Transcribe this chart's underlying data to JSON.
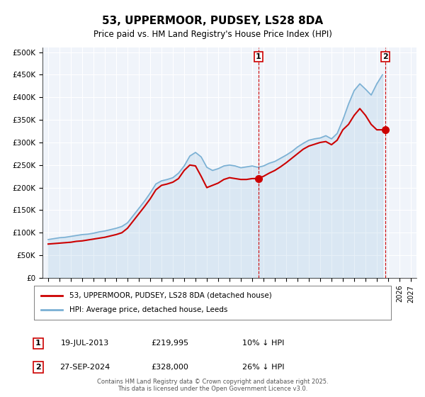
{
  "title": "53, UPPERMOOR, PUDSEY, LS28 8DA",
  "subtitle": "Price paid vs. HM Land Registry's House Price Index (HPI)",
  "title_fontsize": 11,
  "subtitle_fontsize": 9,
  "background_color": "#ffffff",
  "plot_bg_color": "#f0f4fa",
  "grid_color": "#ffffff",
  "legend_label_red": "53, UPPERMOOR, PUDSEY, LS28 8DA (detached house)",
  "legend_label_blue": "HPI: Average price, detached house, Leeds",
  "red_color": "#cc0000",
  "blue_color": "#7ab0d4",
  "annotation1_date": "19-JUL-2013",
  "annotation1_price": "£219,995",
  "annotation1_hpi": "10% ↓ HPI",
  "annotation1_year": 2013.54,
  "annotation1_value": 219995,
  "annotation2_date": "27-SEP-2024",
  "annotation2_price": "£328,000",
  "annotation2_hpi": "26% ↓ HPI",
  "annotation2_year": 2024.74,
  "annotation2_value": 328000,
  "xlabel": "",
  "ylabel": "",
  "ylim": [
    0,
    510000
  ],
  "xlim": [
    1994.5,
    2027.5
  ],
  "yticks": [
    0,
    50000,
    100000,
    150000,
    200000,
    250000,
    300000,
    350000,
    400000,
    450000,
    500000
  ],
  "ytick_labels": [
    "£0",
    "£50K",
    "£100K",
    "£150K",
    "£200K",
    "£250K",
    "£300K",
    "£350K",
    "£400K",
    "£450K",
    "£500K"
  ],
  "footer_text": "Contains HM Land Registry data © Crown copyright and database right 2025.\nThis data is licensed under the Open Government Licence v3.0.",
  "hpi_data": {
    "years": [
      1995.0,
      1995.5,
      1996.0,
      1996.5,
      1997.0,
      1997.5,
      1998.0,
      1998.5,
      1999.0,
      1999.5,
      2000.0,
      2000.5,
      2001.0,
      2001.5,
      2002.0,
      2002.5,
      2003.0,
      2003.5,
      2004.0,
      2004.5,
      2005.0,
      2005.5,
      2006.0,
      2006.5,
      2007.0,
      2007.5,
      2008.0,
      2008.5,
      2009.0,
      2009.5,
      2010.0,
      2010.5,
      2011.0,
      2011.5,
      2012.0,
      2012.5,
      2013.0,
      2013.5,
      2014.0,
      2014.5,
      2015.0,
      2015.5,
      2016.0,
      2016.5,
      2017.0,
      2017.5,
      2018.0,
      2018.5,
      2019.0,
      2019.5,
      2020.0,
      2020.5,
      2021.0,
      2021.5,
      2022.0,
      2022.5,
      2023.0,
      2023.5,
      2024.0,
      2024.5
    ],
    "values": [
      85000,
      87000,
      89000,
      90000,
      92000,
      94000,
      96000,
      97000,
      99000,
      102000,
      104000,
      107000,
      110000,
      114000,
      122000,
      138000,
      154000,
      170000,
      188000,
      208000,
      215000,
      218000,
      222000,
      232000,
      248000,
      270000,
      278000,
      268000,
      245000,
      238000,
      242000,
      248000,
      250000,
      248000,
      244000,
      246000,
      248000,
      245000,
      248000,
      254000,
      258000,
      265000,
      272000,
      280000,
      290000,
      298000,
      305000,
      308000,
      310000,
      315000,
      308000,
      320000,
      350000,
      385000,
      415000,
      430000,
      418000,
      405000,
      430000,
      450000
    ]
  },
  "red_data": {
    "years": [
      1995.0,
      1995.5,
      1996.0,
      1996.5,
      1997.0,
      1997.5,
      1998.0,
      1998.5,
      1999.0,
      1999.5,
      2000.0,
      2000.5,
      2001.0,
      2001.5,
      2002.0,
      2002.5,
      2003.0,
      2003.5,
      2004.0,
      2004.5,
      2005.0,
      2005.5,
      2006.0,
      2006.5,
      2007.0,
      2007.5,
      2008.0,
      2008.5,
      2009.0,
      2009.5,
      2010.0,
      2010.5,
      2011.0,
      2011.5,
      2012.0,
      2012.5,
      2013.0,
      2013.5,
      2014.0,
      2014.5,
      2015.0,
      2015.5,
      2016.0,
      2016.5,
      2017.0,
      2017.5,
      2018.0,
      2018.5,
      2019.0,
      2019.5,
      2020.0,
      2020.5,
      2021.0,
      2021.5,
      2022.0,
      2022.5,
      2023.0,
      2023.5,
      2024.0,
      2024.5
    ],
    "values": [
      75000,
      76000,
      77000,
      78000,
      79000,
      81000,
      82000,
      84000,
      86000,
      88000,
      90000,
      93000,
      96000,
      100000,
      110000,
      126000,
      142000,
      158000,
      175000,
      195000,
      205000,
      208000,
      212000,
      220000,
      238000,
      250000,
      248000,
      225000,
      200000,
      205000,
      210000,
      218000,
      222000,
      220000,
      218000,
      218000,
      220000,
      219995,
      225000,
      232000,
      238000,
      246000,
      255000,
      265000,
      275000,
      285000,
      292000,
      296000,
      300000,
      302000,
      295000,
      305000,
      328000,
      340000,
      360000,
      375000,
      360000,
      340000,
      328000,
      328000
    ]
  }
}
